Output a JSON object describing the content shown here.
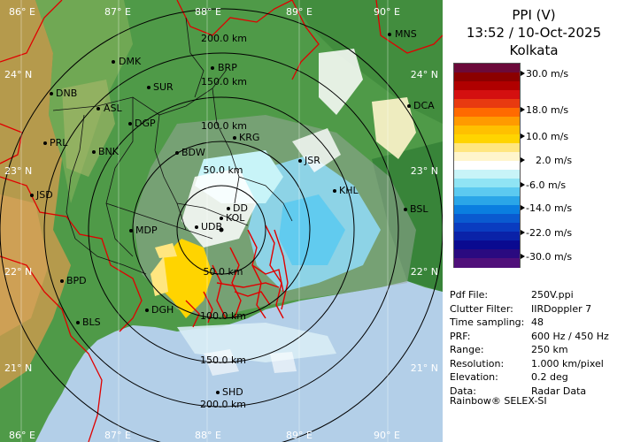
{
  "product": {
    "title": "PPI (V)",
    "datetime": "13:52 / 10-Oct-2025",
    "station": "Kolkata"
  },
  "legend": {
    "labels": [
      "30.0 m/s",
      "18.0 m/s",
      "10.0 m/s",
      "2.0 m/s",
      "-6.0 m/s",
      "-14.0 m/s",
      "-22.0 m/s",
      "-30.0 m/s"
    ],
    "colors": [
      "#6b0a3a",
      "#8b0000",
      "#b00000",
      "#d41010",
      "#e83a10",
      "#ff6a00",
      "#ff9a00",
      "#ffc000",
      "#ffd400",
      "#ffe680",
      "#fff5cc",
      "#ffffff",
      "#c8f4f8",
      "#90e4f4",
      "#5ccaf0",
      "#2aa6e8",
      "#0a7ee0",
      "#0a5ad0",
      "#0a3cc0",
      "#0a22a8",
      "#0a0a90",
      "#2a0a80",
      "#50107a"
    ]
  },
  "map": {
    "lon_labels": [
      "86° E",
      "87° E",
      "88° E",
      "89° E",
      "90° E"
    ],
    "lat_labels_left": [
      "24° N",
      "23° N",
      "22° N",
      "21° N"
    ],
    "lat_labels_right": [
      "24° N",
      "23° N",
      "22° N",
      "21° N"
    ],
    "range_labels": [
      "50.0 km",
      "100.0 km",
      "150.0 km",
      "200.0 km"
    ],
    "range_labels_south": [
      "50.0 km",
      "100.0 km",
      "150.0 km",
      "200.0 km"
    ],
    "cities": [
      "MNS",
      "DMK",
      "BRP",
      "DNB",
      "SUR",
      "ASL",
      "DGP",
      "DCA",
      "PRL",
      "KRG",
      "BNK",
      "BDW",
      "JSR",
      "JSD",
      "KHL",
      "DD",
      "KOL",
      "BSL",
      "MDP",
      "UDB",
      "BPD",
      "DGH",
      "BLS",
      "SHD"
    ]
  },
  "info": {
    "rows": [
      {
        "key": "Pdf File:",
        "value": "250V.ppi"
      },
      {
        "key": "Clutter Filter:",
        "value": "IIRDoppler 7"
      },
      {
        "key": "Time sampling:",
        "value": "48"
      },
      {
        "key": "PRF:",
        "value": "600 Hz / 450 Hz"
      },
      {
        "key": "Range:",
        "value": "250 km"
      },
      {
        "key": "Resolution:",
        "value": "1.000 km/pixel"
      },
      {
        "key": "Elevation:",
        "value": "0.2 deg"
      },
      {
        "key": "Data:",
        "value": "Radar Data"
      }
    ],
    "footer": "Rainbow® SELEX-SI"
  }
}
